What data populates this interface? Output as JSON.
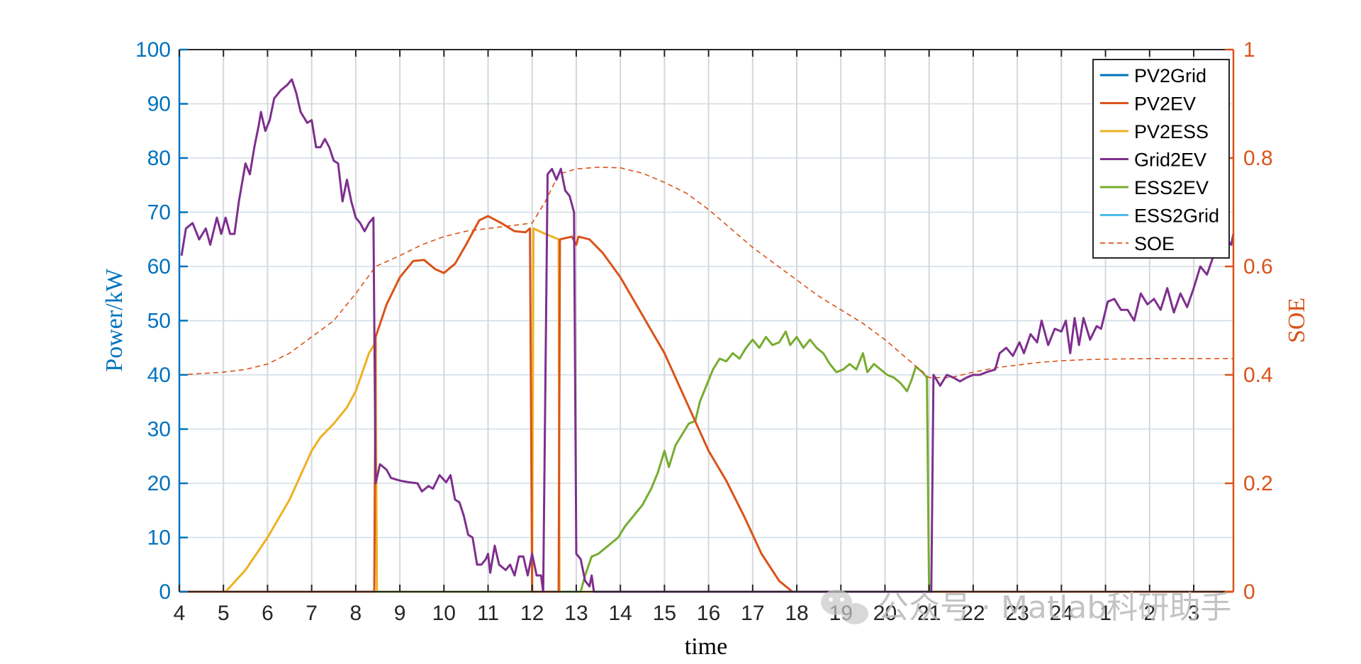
{
  "chart_data": {
    "type": "line",
    "xlabel": "time",
    "ylabel": "Power/kW",
    "y2label": "SOE",
    "x_ticks": [
      "4",
      "5",
      "6",
      "7",
      "8",
      "9",
      "10",
      "11",
      "12",
      "13",
      "14",
      "15",
      "16",
      "17",
      "18",
      "19",
      "20",
      "21",
      "22",
      "23",
      "24",
      "1",
      "2",
      "3"
    ],
    "ylim": [
      0,
      100
    ],
    "y_ticks": [
      "0",
      "10",
      "20",
      "30",
      "40",
      "50",
      "60",
      "70",
      "80",
      "90",
      "100"
    ],
    "y2lim": [
      0,
      1
    ],
    "y2_ticks": [
      "0",
      "0.2",
      "0.4",
      "0.6",
      "0.8",
      "1"
    ],
    "grid": true,
    "legend_position": "top-right",
    "colors": {
      "PV2Grid": "#0072bd",
      "PV2EV": "#d95319",
      "PV2ESS": "#edb120",
      "Grid2EV": "#7e2f8e",
      "ESS2EV": "#77ac30",
      "ESS2Grid": "#4dbeee",
      "SOE": "#d95319",
      "left_axis": "#0072bd",
      "right_axis": "#d95319"
    },
    "series": [
      {
        "name": "PV2Grid",
        "axis": "left",
        "points": [
          [
            4,
            0
          ],
          [
            27.9,
            0
          ]
        ]
      },
      {
        "name": "PV2EV",
        "axis": "left",
        "points": [
          [
            4,
            0
          ],
          [
            8.42,
            0
          ],
          [
            8.45,
            47
          ],
          [
            8.7,
            53
          ],
          [
            9.0,
            58
          ],
          [
            9.3,
            61
          ],
          [
            9.55,
            61.2
          ],
          [
            9.8,
            59.5
          ],
          [
            10.0,
            58.8
          ],
          [
            10.25,
            60.5
          ],
          [
            10.5,
            64
          ],
          [
            10.8,
            68.5
          ],
          [
            11.0,
            69.3
          ],
          [
            11.3,
            68
          ],
          [
            11.6,
            66.5
          ],
          [
            11.85,
            66.3
          ],
          [
            11.95,
            67
          ],
          [
            12.0,
            0
          ],
          [
            12.6,
            0
          ],
          [
            12.63,
            65
          ],
          [
            12.9,
            65.5
          ],
          [
            13.0,
            64
          ],
          [
            13.05,
            65.5
          ],
          [
            13.3,
            65
          ],
          [
            13.6,
            62.5
          ],
          [
            14.0,
            58
          ],
          [
            14.5,
            51
          ],
          [
            15.0,
            44
          ],
          [
            15.5,
            35
          ],
          [
            16.0,
            26
          ],
          [
            16.4,
            20.5
          ],
          [
            16.8,
            14
          ],
          [
            17.2,
            7
          ],
          [
            17.6,
            2
          ],
          [
            17.9,
            0
          ],
          [
            27.9,
            0
          ]
        ]
      },
      {
        "name": "PV2ESS",
        "axis": "left",
        "points": [
          [
            4,
            0
          ],
          [
            5.05,
            0
          ],
          [
            5.5,
            4
          ],
          [
            6.0,
            10
          ],
          [
            6.5,
            17
          ],
          [
            7.0,
            26
          ],
          [
            7.2,
            28.5
          ],
          [
            7.5,
            31
          ],
          [
            7.8,
            34
          ],
          [
            8.0,
            37
          ],
          [
            8.3,
            44
          ],
          [
            8.45,
            46
          ],
          [
            8.48,
            0
          ],
          [
            12.0,
            0
          ],
          [
            12.03,
            67
          ],
          [
            12.3,
            66
          ],
          [
            12.6,
            65
          ],
          [
            12.62,
            0
          ],
          [
            27.9,
            0
          ]
        ]
      },
      {
        "name": "Grid2EV",
        "axis": "left",
        "points": [
          [
            4.05,
            62
          ],
          [
            4.15,
            67
          ],
          [
            4.3,
            68
          ],
          [
            4.45,
            65
          ],
          [
            4.6,
            67
          ],
          [
            4.7,
            64
          ],
          [
            4.85,
            69
          ],
          [
            4.95,
            66
          ],
          [
            5.05,
            69
          ],
          [
            5.15,
            66
          ],
          [
            5.25,
            66
          ],
          [
            5.35,
            72
          ],
          [
            5.5,
            79
          ],
          [
            5.6,
            77
          ],
          [
            5.7,
            82
          ],
          [
            5.8,
            86
          ],
          [
            5.85,
            88.5
          ],
          [
            5.95,
            85
          ],
          [
            6.05,
            87
          ],
          [
            6.15,
            91
          ],
          [
            6.3,
            92.5
          ],
          [
            6.45,
            93.5
          ],
          [
            6.55,
            94.5
          ],
          [
            6.65,
            92
          ],
          [
            6.75,
            88.5
          ],
          [
            6.9,
            86.5
          ],
          [
            7.0,
            87
          ],
          [
            7.1,
            82
          ],
          [
            7.2,
            82
          ],
          [
            7.3,
            83.5
          ],
          [
            7.4,
            82
          ],
          [
            7.5,
            79.5
          ],
          [
            7.6,
            79
          ],
          [
            7.7,
            72
          ],
          [
            7.8,
            76
          ],
          [
            7.9,
            72
          ],
          [
            8.0,
            69
          ],
          [
            8.1,
            68
          ],
          [
            8.2,
            66.5
          ],
          [
            8.3,
            68
          ],
          [
            8.4,
            69
          ],
          [
            8.45,
            20
          ],
          [
            8.55,
            23.5
          ],
          [
            8.7,
            22.5
          ],
          [
            8.8,
            21
          ],
          [
            9.0,
            20.5
          ],
          [
            9.2,
            20.2
          ],
          [
            9.4,
            20
          ],
          [
            9.5,
            18.5
          ],
          [
            9.65,
            19.5
          ],
          [
            9.75,
            19
          ],
          [
            9.9,
            21.5
          ],
          [
            10.05,
            20.2
          ],
          [
            10.15,
            21.5
          ],
          [
            10.25,
            17
          ],
          [
            10.35,
            16.5
          ],
          [
            10.45,
            14
          ],
          [
            10.55,
            10.5
          ],
          [
            10.65,
            10
          ],
          [
            10.75,
            5
          ],
          [
            10.85,
            5
          ],
          [
            10.95,
            6
          ],
          [
            11.0,
            7
          ],
          [
            11.05,
            3.5
          ],
          [
            11.15,
            8.5
          ],
          [
            11.25,
            5
          ],
          [
            11.4,
            4
          ],
          [
            11.5,
            5
          ],
          [
            11.6,
            3
          ],
          [
            11.7,
            6.5
          ],
          [
            11.8,
            6.5
          ],
          [
            11.9,
            3
          ],
          [
            12.0,
            7
          ],
          [
            12.1,
            3
          ],
          [
            12.2,
            3
          ],
          [
            12.25,
            0
          ],
          [
            12.35,
            77
          ],
          [
            12.45,
            78
          ],
          [
            12.55,
            76
          ],
          [
            12.65,
            78
          ],
          [
            12.75,
            74
          ],
          [
            12.85,
            73
          ],
          [
            12.95,
            70
          ],
          [
            13.0,
            7
          ],
          [
            13.1,
            6
          ],
          [
            13.2,
            2
          ],
          [
            13.3,
            1
          ],
          [
            13.35,
            3
          ],
          [
            13.4,
            0
          ],
          [
            21.05,
            0
          ],
          [
            21.1,
            40
          ],
          [
            21.25,
            38
          ],
          [
            21.4,
            40
          ],
          [
            21.55,
            39.5
          ],
          [
            21.7,
            38.8
          ],
          [
            21.85,
            39.5
          ],
          [
            22.0,
            40
          ],
          [
            22.15,
            40
          ],
          [
            22.3,
            40.5
          ],
          [
            22.5,
            41
          ],
          [
            22.6,
            44
          ],
          [
            22.75,
            45
          ],
          [
            22.9,
            43.5
          ],
          [
            23.05,
            46
          ],
          [
            23.15,
            44
          ],
          [
            23.3,
            47.5
          ],
          [
            23.45,
            46
          ],
          [
            23.55,
            50
          ],
          [
            23.7,
            45.5
          ],
          [
            23.85,
            48.5
          ],
          [
            24.0,
            48
          ],
          [
            24.1,
            50
          ],
          [
            24.2,
            44
          ],
          [
            24.3,
            50.5
          ],
          [
            24.4,
            45.5
          ],
          [
            24.5,
            50.5
          ],
          [
            24.65,
            46.5
          ],
          [
            24.8,
            49
          ],
          [
            24.9,
            48.5
          ],
          [
            25.05,
            53.5
          ],
          [
            25.2,
            54
          ],
          [
            25.35,
            52
          ],
          [
            25.5,
            52
          ],
          [
            25.65,
            50
          ],
          [
            25.8,
            55
          ],
          [
            25.95,
            53
          ],
          [
            26.1,
            54
          ],
          [
            26.25,
            52
          ],
          [
            26.4,
            56
          ],
          [
            26.55,
            51.5
          ],
          [
            26.7,
            55
          ],
          [
            26.85,
            52.5
          ],
          [
            27.0,
            56
          ],
          [
            27.15,
            60
          ],
          [
            27.3,
            58.5
          ],
          [
            27.45,
            62
          ],
          [
            27.55,
            65
          ],
          [
            27.65,
            64.5
          ],
          [
            27.75,
            65
          ],
          [
            27.85,
            64
          ],
          [
            27.9,
            66
          ]
        ]
      },
      {
        "name": "ESS2EV",
        "axis": "left",
        "points": [
          [
            4,
            0
          ],
          [
            13.1,
            0
          ],
          [
            13.2,
            3
          ],
          [
            13.35,
            6.5
          ],
          [
            13.5,
            7
          ],
          [
            13.65,
            8
          ],
          [
            13.8,
            9
          ],
          [
            13.95,
            10
          ],
          [
            14.1,
            12
          ],
          [
            14.3,
            14
          ],
          [
            14.5,
            16
          ],
          [
            14.7,
            19
          ],
          [
            14.85,
            22
          ],
          [
            15.0,
            26
          ],
          [
            15.1,
            23
          ],
          [
            15.25,
            27
          ],
          [
            15.4,
            29
          ],
          [
            15.55,
            31
          ],
          [
            15.7,
            31.5
          ],
          [
            15.8,
            35
          ],
          [
            15.95,
            38
          ],
          [
            16.1,
            41
          ],
          [
            16.25,
            43
          ],
          [
            16.4,
            42.5
          ],
          [
            16.55,
            44
          ],
          [
            16.7,
            43
          ],
          [
            16.85,
            45
          ],
          [
            17.0,
            46.5
          ],
          [
            17.15,
            45
          ],
          [
            17.3,
            47
          ],
          [
            17.45,
            45.5
          ],
          [
            17.6,
            46
          ],
          [
            17.75,
            48
          ],
          [
            17.85,
            45.5
          ],
          [
            18.0,
            47
          ],
          [
            18.15,
            45
          ],
          [
            18.3,
            46.5
          ],
          [
            18.45,
            45
          ],
          [
            18.6,
            44
          ],
          [
            18.75,
            42
          ],
          [
            18.9,
            40.5
          ],
          [
            19.05,
            41
          ],
          [
            19.2,
            42
          ],
          [
            19.35,
            41
          ],
          [
            19.5,
            44
          ],
          [
            19.6,
            40.5
          ],
          [
            19.75,
            42
          ],
          [
            19.9,
            41
          ],
          [
            20.05,
            40
          ],
          [
            20.2,
            39.5
          ],
          [
            20.35,
            38.5
          ],
          [
            20.5,
            37
          ],
          [
            20.6,
            39
          ],
          [
            20.7,
            41.5
          ],
          [
            20.85,
            40.5
          ],
          [
            20.95,
            39.5
          ],
          [
            21.0,
            0
          ],
          [
            27.9,
            0
          ]
        ]
      },
      {
        "name": "ESS2Grid",
        "axis": "left",
        "points": [
          [
            4,
            0
          ],
          [
            27.9,
            0
          ]
        ]
      },
      {
        "name": "SOE",
        "axis": "right",
        "dashed": true,
        "points": [
          [
            4,
            0.4
          ],
          [
            5,
            0.405
          ],
          [
            5.5,
            0.41
          ],
          [
            6,
            0.42
          ],
          [
            6.5,
            0.44
          ],
          [
            7,
            0.47
          ],
          [
            7.5,
            0.5
          ],
          [
            8,
            0.55
          ],
          [
            8.45,
            0.6
          ],
          [
            9,
            0.62
          ],
          [
            9.5,
            0.64
          ],
          [
            10,
            0.655
          ],
          [
            10.5,
            0.665
          ],
          [
            11,
            0.67
          ],
          [
            11.5,
            0.675
          ],
          [
            12,
            0.68
          ],
          [
            12.3,
            0.72
          ],
          [
            12.6,
            0.77
          ],
          [
            13,
            0.78
          ],
          [
            13.5,
            0.783
          ],
          [
            14,
            0.782
          ],
          [
            14.5,
            0.772
          ],
          [
            15,
            0.755
          ],
          [
            15.5,
            0.735
          ],
          [
            16,
            0.705
          ],
          [
            16.5,
            0.67
          ],
          [
            17,
            0.635
          ],
          [
            17.5,
            0.605
          ],
          [
            18,
            0.575
          ],
          [
            18.5,
            0.545
          ],
          [
            19,
            0.52
          ],
          [
            19.5,
            0.495
          ],
          [
            20,
            0.465
          ],
          [
            20.5,
            0.43
          ],
          [
            21,
            0.395
          ],
          [
            21.5,
            0.395
          ],
          [
            22,
            0.405
          ],
          [
            22.5,
            0.413
          ],
          [
            23,
            0.418
          ],
          [
            23.5,
            0.423
          ],
          [
            24,
            0.426
          ],
          [
            24.5,
            0.428
          ],
          [
            25,
            0.429
          ],
          [
            26,
            0.43
          ],
          [
            27,
            0.43
          ],
          [
            27.9,
            0.43
          ]
        ]
      }
    ],
    "watermark": "公众号 · Matlab科研助手"
  }
}
